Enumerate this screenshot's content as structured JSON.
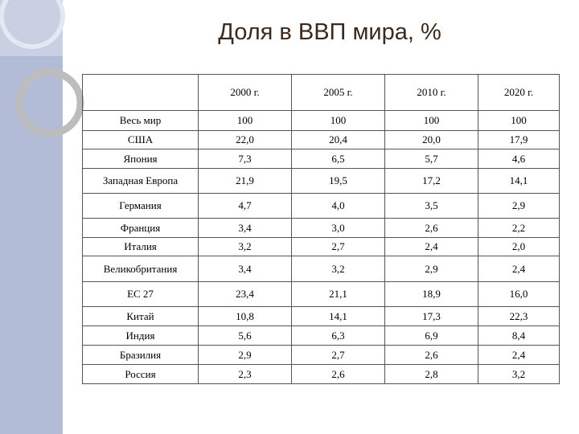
{
  "title": "Доля в ВВП мира, %",
  "table": {
    "header": [
      "2000 г.",
      "2005 г.",
      "2010 г.",
      "2020 г."
    ],
    "rows": [
      [
        "Весь мир",
        "100",
        "100",
        "100",
        "100"
      ],
      [
        "США",
        "22,0",
        "20,4",
        "20,0",
        "17,9"
      ],
      [
        "Япония",
        "7,3",
        "6,5",
        "5,7",
        "4,6"
      ],
      [
        "Западная Европа",
        "21,9",
        "19,5",
        "17,2",
        "14,1"
      ],
      [
        "Германия",
        "4,7",
        "4,0",
        "3,5",
        "2,9"
      ],
      [
        "Франция",
        "3,4",
        "3,0",
        "2,6",
        "2,2"
      ],
      [
        "Италия",
        "3,2",
        "2,7",
        "2,4",
        "2,0"
      ],
      [
        "Великобритания",
        "3,4",
        "3,2",
        "2,9",
        "2,4"
      ],
      [
        "ЕС 27",
        "23,4",
        "21,1",
        "18,9",
        "16,0"
      ],
      [
        "Китай",
        "10,8",
        "14,1",
        "17,3",
        "22,3"
      ],
      [
        "Индия",
        "5,6",
        "6,3",
        "6,9",
        "8,4"
      ],
      [
        "Бразилия",
        "2,9",
        "2,7",
        "2,6",
        "2,4"
      ],
      [
        "Россия",
        "2,3",
        "2,6",
        "2,8",
        "3,2"
      ]
    ]
  }
}
